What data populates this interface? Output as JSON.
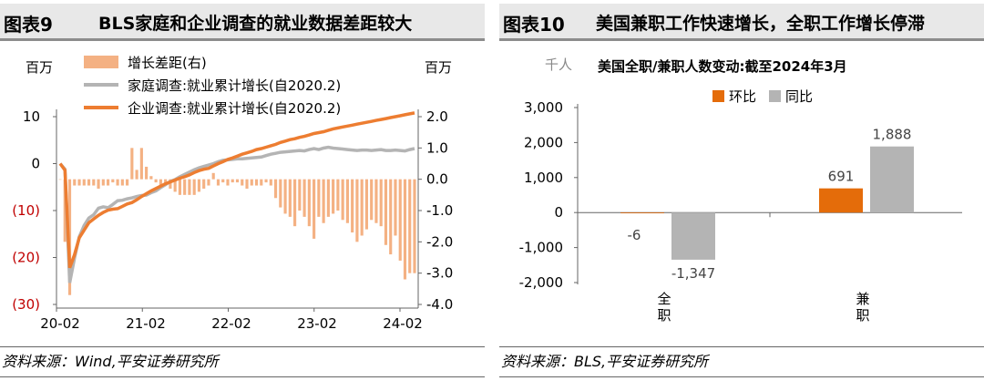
{
  "left": {
    "fig_no": "图表9",
    "fig_title": "BLS家庭和企业调查的就业数据差距较大",
    "unit_left": "百万",
    "unit_right": "百万",
    "source": "资料来源：Wind,平安证券研究所",
    "colors": {
      "gap": "#f4b183",
      "household": "#b4b4b4",
      "establishment": "#ed7d31",
      "neg_tick": "#c00000"
    },
    "chart_data": {
      "type": "line",
      "x_ticks": [
        "20-02",
        "21-02",
        "22-02",
        "23-02",
        "24-02"
      ],
      "y_left_ticks": [
        "10",
        "0",
        "(10)",
        "(20)",
        "(30)"
      ],
      "y_left_lim": [
        -30,
        10
      ],
      "y_right_ticks": [
        "2.0",
        "1.0",
        "0.0",
        "-1.0",
        "-2.0",
        "-3.0",
        "-4.0"
      ],
      "y_right_lim": [
        -4,
        2
      ],
      "grid": false,
      "legend": "top-left",
      "series": [
        {
          "name": "增长差距(右)",
          "type": "bar",
          "axis": "right",
          "values": [
            0.0,
            -2.0,
            -3.7,
            -0.2,
            -0.2,
            -0.2,
            -0.2,
            -0.2,
            -0.3,
            -0.2,
            -0.2,
            -0.1,
            -0.2,
            -0.2,
            -0.2,
            1.0,
            0.3,
            1.0,
            0.4,
            0.1,
            -0.1,
            -0.2,
            -0.2,
            -0.3,
            -0.4,
            -0.5,
            -0.5,
            -0.5,
            -0.5,
            -0.4,
            -0.3,
            -0.2,
            0.2,
            -0.2,
            -0.1,
            -0.2,
            -0.1,
            -0.1,
            -0.2,
            -0.3,
            -0.2,
            -0.2,
            -0.2,
            -0.1,
            -0.2,
            -0.6,
            -0.9,
            -1.1,
            -1.2,
            -1.5,
            -1.0,
            -1.2,
            -1.5,
            -1.9,
            -1.2,
            -1.4,
            -1.2,
            -1.1,
            -1.0,
            -1.3,
            -1.4,
            -1.7,
            -2.0,
            -1.8,
            -1.6,
            -1.3,
            -1.4,
            -1.5,
            -2.1,
            -2.4,
            -1.8,
            -2.6,
            -3.2,
            -3.0,
            -3.0
          ]
        },
        {
          "name": "家庭调查:就业累计增长(自2020.2)",
          "type": "line",
          "axis": "left",
          "values": [
            0,
            -1.2,
            -25.4,
            -20.1,
            -15.6,
            -13.2,
            -11.6,
            -10.9,
            -9.5,
            -9.2,
            -9.4,
            -8.7,
            -7.9,
            -7.8,
            -7.5,
            -7.3,
            -7.0,
            -6.8,
            -6.7,
            -6.2,
            -5.8,
            -5.1,
            -4.5,
            -3.8,
            -3.4,
            -2.8,
            -2.3,
            -1.8,
            -1.3,
            -0.9,
            -0.6,
            -0.3,
            0.0,
            0.4,
            0.7,
            0.8,
            0.9,
            1.0,
            1.0,
            1.1,
            1.2,
            1.3,
            1.4,
            1.7,
            2.0,
            2.2,
            2.4,
            2.5,
            2.6,
            2.7,
            2.8,
            2.7,
            3.0,
            3.2,
            3.0,
            3.3,
            3.5,
            3.3,
            3.2,
            3.1,
            3.0,
            2.9,
            2.8,
            2.9,
            2.9,
            2.8,
            2.9,
            3.0,
            2.8,
            2.8,
            2.9,
            2.8,
            2.7,
            3.0,
            3.2
          ]
        },
        {
          "name": "企业调查:就业累计增长(自2020.2)",
          "type": "line",
          "axis": "left",
          "values": [
            0,
            -1.4,
            -22.2,
            -19.4,
            -15.8,
            -14.2,
            -12.6,
            -11.8,
            -11.0,
            -10.4,
            -9.9,
            -9.7,
            -9.6,
            -9.1,
            -8.6,
            -8.3,
            -7.7,
            -7.0,
            -6.4,
            -5.8,
            -5.3,
            -4.8,
            -4.3,
            -3.9,
            -3.5,
            -3.1,
            -2.8,
            -2.4,
            -1.9,
            -1.5,
            -1.2,
            -1.0,
            -0.5,
            0.0,
            0.4,
            0.9,
            1.2,
            1.6,
            2.0,
            2.3,
            2.6,
            3.0,
            3.2,
            3.5,
            3.8,
            4.1,
            4.5,
            4.8,
            5.1,
            5.3,
            5.6,
            5.8,
            6.1,
            6.4,
            6.6,
            6.8,
            7.1,
            7.4,
            7.6,
            7.8,
            8.0,
            8.2,
            8.4,
            8.6,
            8.8,
            9.0,
            9.2,
            9.4,
            9.6,
            9.8,
            10.0,
            10.2,
            10.4,
            10.6,
            10.8
          ]
        }
      ]
    }
  },
  "right": {
    "fig_no": "图表10",
    "fig_title": "美国兼职工作快速增长，全职工作增长停滞",
    "unit": "千人",
    "source": "资料来源：BLS,平安证券研究所",
    "colors": {
      "mom": "#e46c0a",
      "yoy": "#b4b4b4"
    },
    "chart_data": {
      "type": "bar",
      "title": "美国全职/兼职人数变动:截至2024年3月",
      "categories": [
        "全职",
        "兼职"
      ],
      "series": [
        {
          "name": "环比",
          "values": [
            -6,
            691
          ]
        },
        {
          "name": "同比",
          "values": [
            -1347,
            1888
          ]
        }
      ],
      "data_labels": [
        [
          "-6",
          "691"
        ],
        [
          "-1,347",
          "1,888"
        ]
      ],
      "y_ticks": [
        "3,000",
        "2,000",
        "1,000",
        "0",
        "-1,000",
        "-2,000"
      ],
      "ylim": [
        -2000,
        3000
      ],
      "grid": false,
      "legend": "top"
    }
  }
}
